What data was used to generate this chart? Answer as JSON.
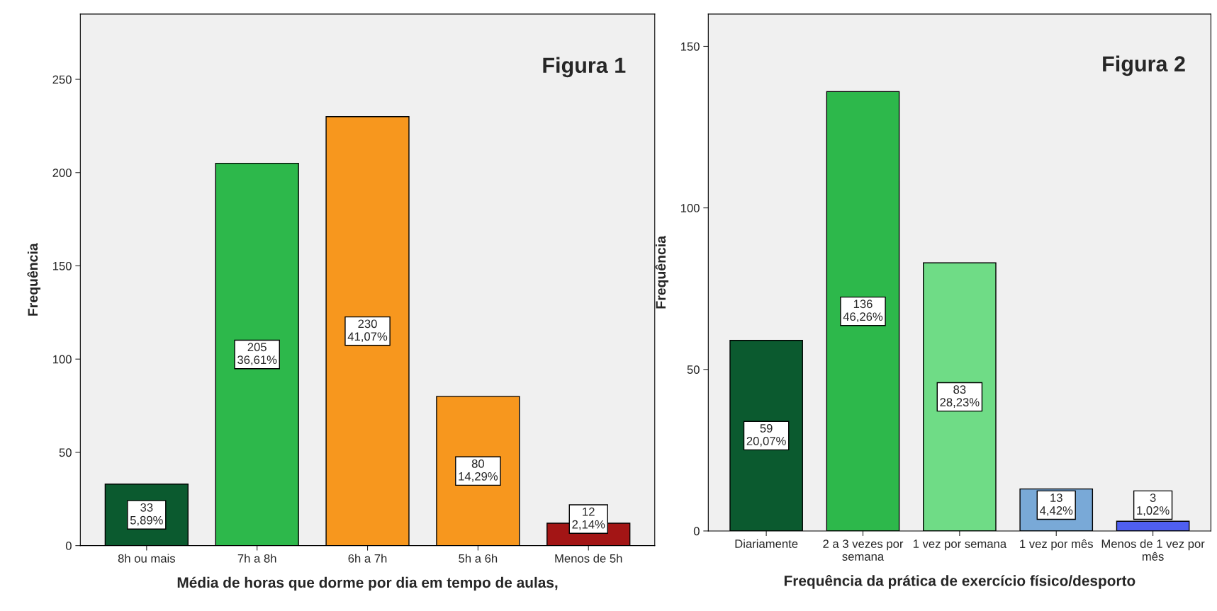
{
  "chart_data": [
    {
      "type": "bar",
      "xlabel": "Média de horas que dorme por dia em tempo de aulas,",
      "ylabel": "Frequência",
      "annotations": [
        "Figura 1"
      ],
      "categories": [
        "8h ou mais",
        "7h a 8h",
        "6h a 7h",
        "5h a 6h",
        "Menos de 5h"
      ],
      "values": [
        33,
        205,
        230,
        80,
        12
      ],
      "colors": [
        "#0b5a2f",
        "#2db84b",
        "#f7971e",
        "#f7971e",
        "#a31515"
      ],
      "value_labels": [
        "33\n5,89%",
        "205\n36,61%",
        "230\n41,07%",
        "80\n14,29%",
        "12\n2,14%"
      ],
      "ylim": [
        0,
        285
      ],
      "yticks": [
        0,
        50,
        100,
        150,
        200,
        250
      ],
      "grid": false,
      "legend": false
    },
    {
      "type": "bar",
      "xlabel": "Frequência da prática de exercício físico/desporto",
      "ylabel": "Frequência",
      "annotations": [
        "Figura 2"
      ],
      "categories": [
        "Diariamente",
        "2 a 3 vezes por\nsemana",
        "1 vez por semana",
        "1 vez por mês",
        "Menos de 1 vez por\nmês"
      ],
      "values": [
        59,
        136,
        83,
        13,
        3
      ],
      "colors": [
        "#0b5a2f",
        "#2db84b",
        "#6fdc86",
        "#79a9d7",
        "#4f5ff0"
      ],
      "value_labels": [
        "59\n20,07%",
        "136\n46,26%",
        "83\n28,23%",
        "13\n4,42%",
        "3\n1,02%"
      ],
      "ylim": [
        0,
        160
      ],
      "yticks": [
        0,
        50,
        100,
        150
      ],
      "grid": false,
      "legend": false
    }
  ]
}
